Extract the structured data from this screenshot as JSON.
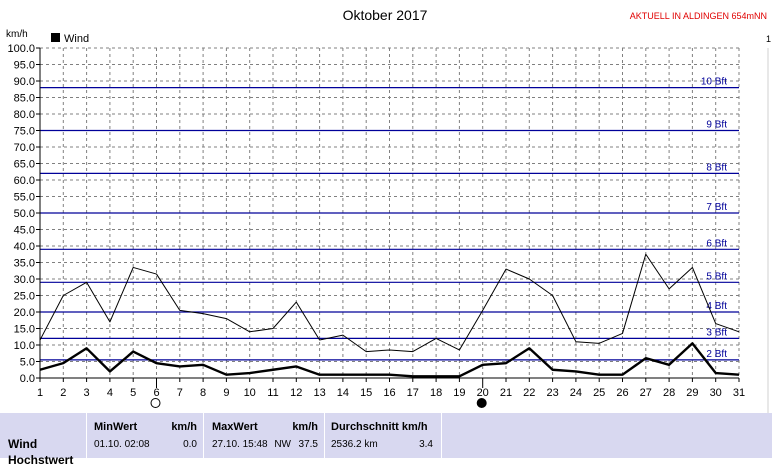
{
  "header": {
    "title": "Oktober 2017",
    "station": "AKTUELL IN ALDINGEN 654mNN",
    "station_color": "#e00000",
    "unit": "km/h",
    "legend_label": "Wind"
  },
  "chart_data": {
    "type": "line",
    "title": "Oktober 2017",
    "ylabel": "km/h",
    "xlabel": "",
    "ylim": [
      0,
      100
    ],
    "yticks": [
      "100.0",
      "95.0",
      "90.0",
      "85.0",
      "80.0",
      "75.0",
      "70.0",
      "65.0",
      "60.0",
      "55.0",
      "50.0",
      "45.0",
      "40.0",
      "35.0",
      "30.0",
      "25.0",
      "20.0",
      "15.0",
      "10.0",
      "5.0",
      "0.0"
    ],
    "x": [
      1,
      2,
      3,
      4,
      5,
      6,
      7,
      8,
      9,
      10,
      11,
      12,
      13,
      14,
      15,
      16,
      17,
      18,
      19,
      20,
      21,
      22,
      23,
      24,
      25,
      26,
      27,
      28,
      29,
      30,
      31
    ],
    "grid": true,
    "series": [
      {
        "name": "Wind",
        "style": "thick",
        "color": "#000000",
        "values": [
          2.5,
          4.5,
          9,
          2,
          8,
          4.5,
          3.5,
          4,
          1,
          1.5,
          2.5,
          3.5,
          1,
          1,
          1,
          1,
          0.5,
          0.5,
          0.5,
          4,
          4.5,
          9,
          2.5,
          2,
          1,
          1,
          6,
          4,
          10.5,
          1.5,
          1
        ]
      },
      {
        "style": "thin",
        "color": "#000000",
        "values": [
          11.5,
          25,
          29,
          17,
          33.5,
          31.5,
          20.5,
          19.5,
          18,
          14,
          15,
          23,
          11.5,
          13,
          8,
          8.5,
          8,
          12,
          8.5,
          20.5,
          33,
          30,
          25,
          11,
          10.5,
          13.5,
          37.5,
          27,
          33.5,
          16.5,
          14
        ]
      }
    ],
    "beaufort": [
      {
        "label": "2 Bft",
        "kmh": 5.5
      },
      {
        "label": "3 Bft",
        "kmh": 12
      },
      {
        "label": "4 Bft",
        "kmh": 20
      },
      {
        "label": "5 Bft",
        "kmh": 29
      },
      {
        "label": "6 Bft",
        "kmh": 39
      },
      {
        "label": "7 Bft",
        "kmh": 50
      },
      {
        "label": "8 Bft",
        "kmh": 62
      },
      {
        "label": "9 Bft",
        "kmh": 75
      },
      {
        "label": "10 Bft",
        "kmh": 88
      }
    ],
    "moon_phases": [
      {
        "day": 6,
        "phase": "full-moon"
      },
      {
        "day": 20,
        "phase": "new-moon"
      }
    ],
    "colors": {
      "beaufort_line": "#000099",
      "grid": "#808080",
      "moon": "#000000"
    }
  },
  "stats": {
    "row_label": "Wind",
    "row_label_2": "Hochstwert",
    "min": {
      "header": "MinWert",
      "unit": "km/h",
      "datetime": "01.10.  02:08",
      "value": "0.0"
    },
    "max": {
      "header": "MaxWert",
      "unit": "km/h",
      "datetime": "27.10.  15:48",
      "direction": "NW",
      "value": "37.5"
    },
    "avg": {
      "header": "Durchschnitt km/h",
      "distance": "2536.2 km",
      "value": "3.4"
    },
    "bg_color": "#d8d8f0"
  }
}
